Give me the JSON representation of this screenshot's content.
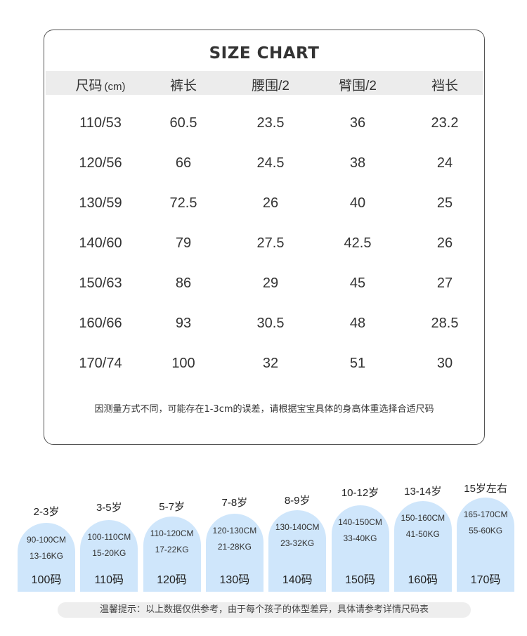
{
  "size_chart": {
    "title": "SIZE CHART",
    "headers": [
      {
        "main": "尺码",
        "unit": "(cm)"
      },
      {
        "main": "裤长",
        "unit": ""
      },
      {
        "main": "腰围/2",
        "unit": ""
      },
      {
        "main": "臂围/2",
        "unit": ""
      },
      {
        "main": "裆长",
        "unit": ""
      }
    ],
    "rows": [
      [
        "110/53",
        "60.5",
        "23.5",
        "36",
        "23.2"
      ],
      [
        "120/56",
        "66",
        "24.5",
        "38",
        "24"
      ],
      [
        "130/59",
        "72.5",
        "26",
        "40",
        "25"
      ],
      [
        "140/60",
        "79",
        "27.5",
        "42.5",
        "26"
      ],
      [
        "150/63",
        "86",
        "29",
        "45",
        "27"
      ],
      [
        "160/66",
        "93",
        "30.5",
        "48",
        "28.5"
      ],
      [
        "170/74",
        "100",
        "32",
        "51",
        "30"
      ]
    ],
    "note": "因测量方式不同，可能存在1-3cm的误差，请根据宝宝具体的身高体重选择合适尺码"
  },
  "age_guide": [
    {
      "age": "2-3岁",
      "height": "90-100CM",
      "weight": "13-16KG",
      "size": "100码"
    },
    {
      "age": "3-5岁",
      "height": "100-110CM",
      "weight": "15-20KG",
      "size": "110码"
    },
    {
      "age": "5-7岁",
      "height": "110-120CM",
      "weight": "17-22KG",
      "size": "120码"
    },
    {
      "age": "7-8岁",
      "height": "120-130CM",
      "weight": "21-28KG",
      "size": "130码"
    },
    {
      "age": "8-9岁",
      "height": "130-140CM",
      "weight": "23-32KG",
      "size": "140码"
    },
    {
      "age": "10-12岁",
      "height": "140-150CM",
      "weight": "33-40KG",
      "size": "150码"
    },
    {
      "age": "13-14岁",
      "height": "150-160CM",
      "weight": "41-50KG",
      "size": "160码"
    },
    {
      "age": "15岁左右",
      "height": "165-170CM",
      "weight": "55-60KG",
      "size": "170码"
    }
  ],
  "tip": "温馨提示：以上数据仅供参考，由于每个孩子的体型差异，具体请参考详情尺码表",
  "colors": {
    "bubble": "#cfe6fb",
    "header_band": "#ececec",
    "border": "#555555"
  }
}
